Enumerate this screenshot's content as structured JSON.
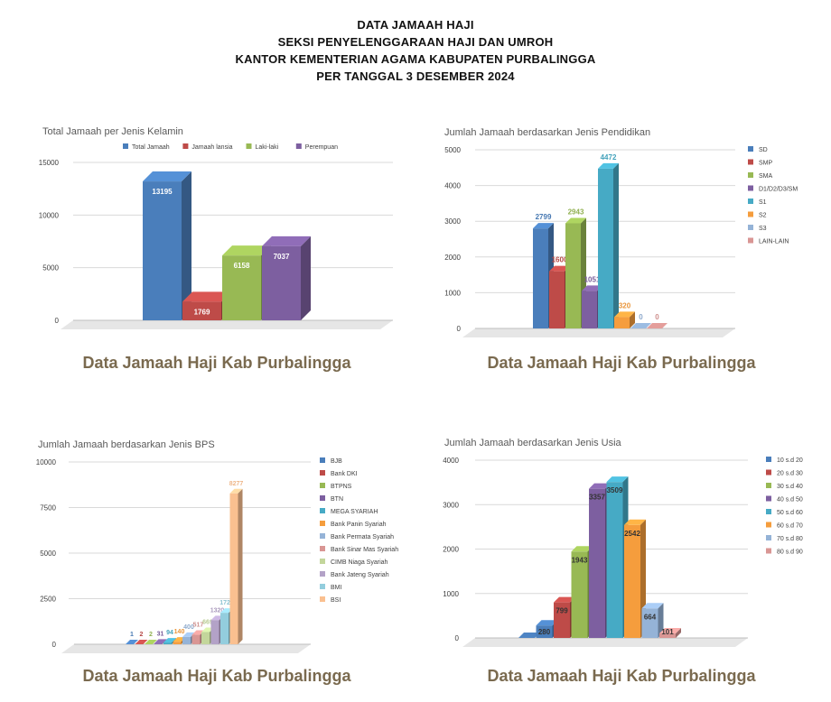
{
  "header": {
    "line1": "DATA JAMAAH HAJI",
    "line2": "SEKSI PENYELENGGARAAN HAJI DAN UMROH",
    "line3": "KANTOR KEMENTERIAN AGAMA KABUPATEN PURBALINGGA",
    "line4": "PER TANGGAL 3 DESEMBER 2024"
  },
  "captions": {
    "c1": "Data Jamaah Haji Kab Purbalingga",
    "c2": "Data Jamaah Haji Kab Purbalingga",
    "c3": "Data Jamaah Haji Kab Purbalingga",
    "c4": "Data Jamaah Haji Kab Purbalingga"
  },
  "chart_data": [
    {
      "type": "bar",
      "title": "Total Jamaah per Jenis Kelamin",
      "legend_position": "top",
      "ylim": [
        0,
        15000
      ],
      "yticks": [
        "0",
        "5000",
        "10000",
        "15000"
      ],
      "series": [
        {
          "name": "Total Jamaah",
          "value": 13195,
          "label": "13195",
          "color": "#4a7ebb"
        },
        {
          "name": "Jamaah lansia",
          "value": 1769,
          "label": "1769",
          "color": "#be4b48"
        },
        {
          "name": "Laki-laki",
          "value": 6158,
          "label": "6158",
          "color": "#98b954"
        },
        {
          "name": "Perempuan",
          "value": 7037,
          "label": "7037",
          "color": "#7d5fa0"
        }
      ]
    },
    {
      "type": "bar",
      "title": "Jumlah Jamaah berdasarkan Jenis Pendidikan",
      "legend_position": "right",
      "ylim": [
        0,
        5000
      ],
      "yticks": [
        "0",
        "1000",
        "2000",
        "3000",
        "4000",
        "5000"
      ],
      "series": [
        {
          "name": "SD",
          "value": 2799,
          "label": "2799",
          "color": "#4a7ebb"
        },
        {
          "name": "SMP",
          "value": 1600,
          "label": "1600",
          "color": "#be4b48"
        },
        {
          "name": "SMA",
          "value": 2943,
          "label": "2943",
          "color": "#98b954"
        },
        {
          "name": "D1/D2/D3/SM",
          "value": 1051,
          "label": "1051",
          "color": "#7d5fa0"
        },
        {
          "name": "S1",
          "value": 4472,
          "label": "4472",
          "color": "#46aac5"
        },
        {
          "name": "S2",
          "value": 320,
          "label": "320",
          "color": "#f59d3d"
        },
        {
          "name": "S3",
          "value": 0,
          "label": "0",
          "color": "#95b3d7"
        },
        {
          "name": "LAIN-LAIN",
          "value": 0,
          "label": "0",
          "color": "#d99694"
        }
      ]
    },
    {
      "type": "bar",
      "title": "Jumlah Jamaah berdasarkan Jenis BPS",
      "legend_position": "right",
      "ylim": [
        0,
        10000
      ],
      "yticks": [
        "0",
        "2500",
        "5000",
        "7500",
        "10000"
      ],
      "series": [
        {
          "name": "BJB",
          "value": 1,
          "label": "1",
          "color": "#4a7ebb"
        },
        {
          "name": "Bank DKI",
          "value": 2,
          "label": "2",
          "color": "#be4b48"
        },
        {
          "name": "BTPNS",
          "value": 2,
          "label": "2",
          "color": "#98b954"
        },
        {
          "name": "BTN",
          "value": 31,
          "label": "31",
          "color": "#7d5fa0"
        },
        {
          "name": "MEGA SYARIAH",
          "value": 94,
          "label": "94",
          "color": "#46aac5"
        },
        {
          "name": "Bank Panin Syariah",
          "value": 140,
          "label": "140",
          "color": "#f59d3d"
        },
        {
          "name": "Bank Permata Syariah",
          "value": 400,
          "label": "400",
          "color": "#95b3d7"
        },
        {
          "name": "Bank Sinar Mas Syariah",
          "value": 517,
          "label": "517",
          "color": "#d99694"
        },
        {
          "name": "CIMB Niaga Syariah",
          "value": 669,
          "label": "669",
          "color": "#c3d69b"
        },
        {
          "name": "Bank Jateng Syariah",
          "value": 1320,
          "label": "1320",
          "color": "#b3a2c7"
        },
        {
          "name": "BMI",
          "value": 1725,
          "label": "1725",
          "color": "#93cddd"
        },
        {
          "name": "BSI",
          "value": 8277,
          "label": "8277",
          "color": "#fac090"
        }
      ]
    },
    {
      "type": "bar",
      "title": "Jumlah Jamaah berdasarkan Jenis Usia",
      "legend_position": "right",
      "ylim": [
        0,
        4000
      ],
      "yticks": [
        "0",
        "1000",
        "2000",
        "3000",
        "4000"
      ],
      "series": [
        {
          "name": "10 s.d 20",
          "value": 0,
          "label": "",
          "color": "#4a7ebb"
        },
        {
          "name": "20 s.d 30",
          "value": 280,
          "label": "280",
          "color": "#4a7ebb"
        },
        {
          "name": "30 s.d 40",
          "value": 799,
          "label": "799",
          "color": "#be4b48"
        },
        {
          "name": "40 s.d 50",
          "value": 1943,
          "label": "1943",
          "color": "#98b954"
        },
        {
          "name": "50 s.d 60",
          "value": 3357,
          "label": "3357",
          "color": "#7d5fa0"
        },
        {
          "name": "60 s.d 70",
          "value": 3509,
          "label": "3509",
          "color": "#46aac5"
        },
        {
          "name": "70 s.d 80",
          "value": 2542,
          "label": "2542",
          "color": "#f59d3d"
        },
        {
          "name": "80 s.d 90",
          "value": 664,
          "label": "664",
          "color": "#95b3d7"
        },
        {
          "name": "",
          "value": 101,
          "label": "101",
          "color": "#d99694"
        }
      ],
      "legend": [
        {
          "name": "10 s.d 20",
          "color": "#4a7ebb"
        },
        {
          "name": "20 s.d 30",
          "color": "#be4b48"
        },
        {
          "name": "30 s.d 40",
          "color": "#98b954"
        },
        {
          "name": "40 s.d 50",
          "color": "#7d5fa0"
        },
        {
          "name": "50 s.d 60",
          "color": "#46aac5"
        },
        {
          "name": "60 s.d 70",
          "color": "#f59d3d"
        },
        {
          "name": "70 s.d 80",
          "color": "#95b3d7"
        },
        {
          "name": "80 s.d 90",
          "color": "#d99694"
        }
      ]
    }
  ]
}
